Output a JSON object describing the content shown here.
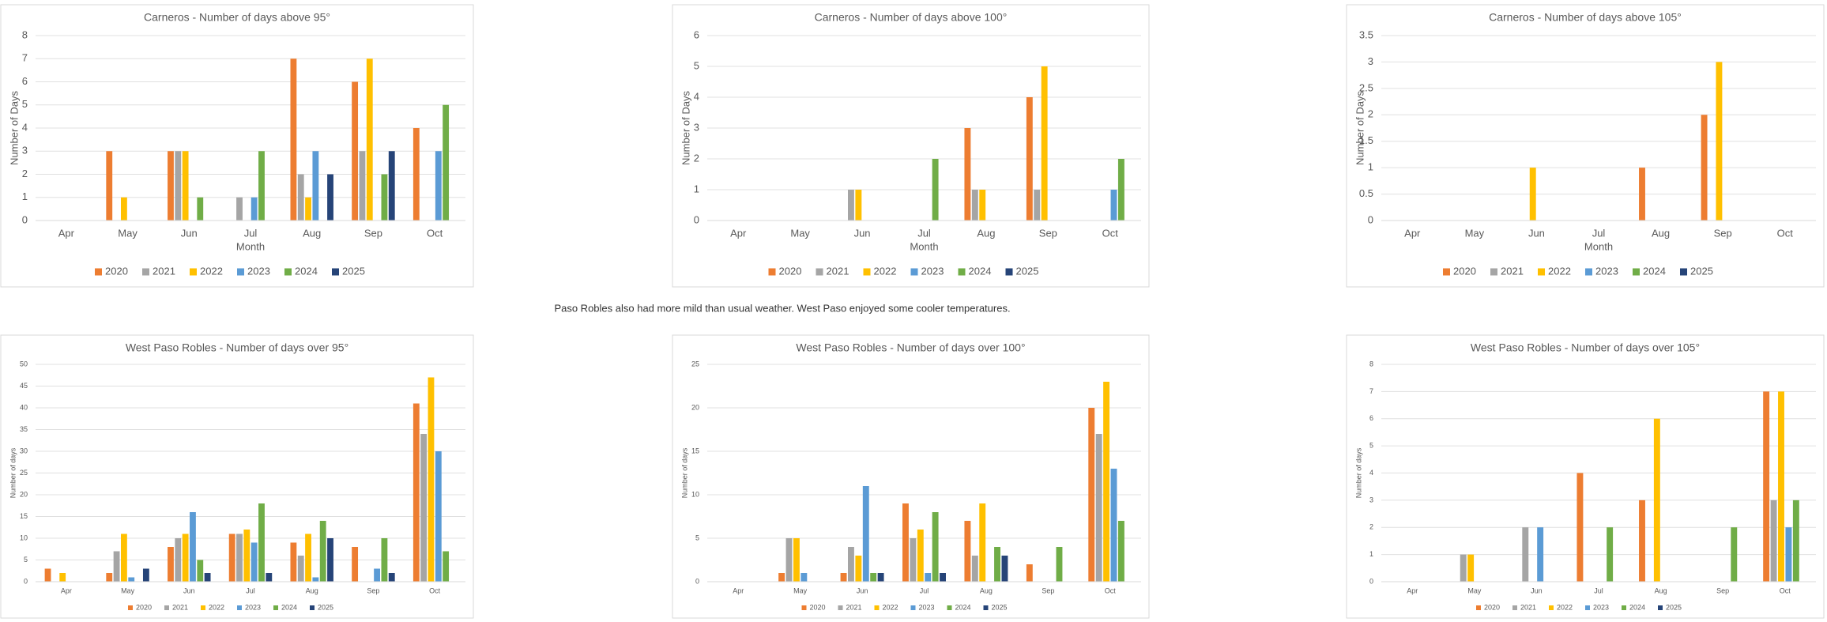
{
  "chart_data": [
    {
      "type": "bar",
      "title": "Carneros - Number of days above 95°",
      "x_label": "Month",
      "y_label": "Number of Days",
      "categories": [
        "Apr",
        "May",
        "Jun",
        "Jul",
        "Aug",
        "Sep",
        "Oct"
      ],
      "series": [
        {
          "name": "2020",
          "color": "#ed7d31",
          "values": [
            0,
            3,
            3,
            0,
            7,
            6,
            4
          ]
        },
        {
          "name": "2021",
          "color": "#a5a5a5",
          "values": [
            0,
            0,
            3,
            1,
            2,
            3,
            0
          ]
        },
        {
          "name": "2022",
          "color": "#ffc000",
          "values": [
            0,
            1,
            3,
            0,
            1,
            7,
            0
          ]
        },
        {
          "name": "2023",
          "color": "#5b9bd5",
          "values": [
            0,
            0,
            0,
            1,
            3,
            0,
            3
          ]
        },
        {
          "name": "2024",
          "color": "#70ad47",
          "values": [
            0,
            0,
            1,
            3,
            0,
            2,
            5
          ]
        },
        {
          "name": "2025",
          "color": "#264478",
          "values": [
            0,
            0,
            0,
            0,
            2,
            3,
            0
          ]
        }
      ],
      "ylim": [
        0,
        8
      ],
      "yticks": [
        0,
        1,
        2,
        3,
        4,
        5,
        6,
        7,
        8
      ],
      "grid": true,
      "legend": "bottom"
    },
    {
      "type": "bar",
      "title": "Carneros - Number of days above 100°",
      "x_label": "Month",
      "y_label": "Number of Days",
      "categories": [
        "Apr",
        "May",
        "Jun",
        "Jul",
        "Aug",
        "Sep",
        "Oct"
      ],
      "series": [
        {
          "name": "2020",
          "color": "#ed7d31",
          "values": [
            0,
            0,
            0,
            0,
            3,
            4,
            0
          ]
        },
        {
          "name": "2021",
          "color": "#a5a5a5",
          "values": [
            0,
            0,
            1,
            0,
            1,
            1,
            0
          ]
        },
        {
          "name": "2022",
          "color": "#ffc000",
          "values": [
            0,
            0,
            1,
            0,
            1,
            5,
            0
          ]
        },
        {
          "name": "2023",
          "color": "#5b9bd5",
          "values": [
            0,
            0,
            0,
            0,
            0,
            0,
            1
          ]
        },
        {
          "name": "2024",
          "color": "#70ad47",
          "values": [
            0,
            0,
            0,
            2,
            0,
            0,
            2
          ]
        },
        {
          "name": "2025",
          "color": "#264478",
          "values": [
            0,
            0,
            0,
            0,
            0,
            0,
            0
          ]
        }
      ],
      "ylim": [
        0,
        6
      ],
      "yticks": [
        0,
        1,
        2,
        3,
        4,
        5,
        6
      ],
      "grid": true,
      "legend": "bottom"
    },
    {
      "type": "bar",
      "title": "Carneros - Number of days above 105°",
      "x_label": "Month",
      "y_label": "Number of Days",
      "categories": [
        "Apr",
        "May",
        "Jun",
        "Jul",
        "Aug",
        "Sep",
        "Oct"
      ],
      "series": [
        {
          "name": "2020",
          "color": "#ed7d31",
          "values": [
            0,
            0,
            0,
            0,
            1,
            2,
            0
          ]
        },
        {
          "name": "2021",
          "color": "#a5a5a5",
          "values": [
            0,
            0,
            0,
            0,
            0,
            0,
            0
          ]
        },
        {
          "name": "2022",
          "color": "#ffc000",
          "values": [
            0,
            0,
            1,
            0,
            0,
            3,
            0
          ]
        },
        {
          "name": "2023",
          "color": "#5b9bd5",
          "values": [
            0,
            0,
            0,
            0,
            0,
            0,
            0
          ]
        },
        {
          "name": "2024",
          "color": "#70ad47",
          "values": [
            0,
            0,
            0,
            0,
            0,
            0,
            0
          ]
        },
        {
          "name": "2025",
          "color": "#264478",
          "values": [
            0,
            0,
            0,
            0,
            0,
            0,
            0
          ]
        }
      ],
      "ylim": [
        0,
        3.5
      ],
      "yticks": [
        0,
        0.5,
        1,
        1.5,
        2,
        2.5,
        3,
        3.5
      ],
      "grid": true,
      "legend": "bottom"
    },
    {
      "type": "bar",
      "title": "West Paso Robles - Number of days over 95°",
      "y_label": "Number of days",
      "categories": [
        "Apr",
        "May",
        "Jun",
        "Jul",
        "Aug",
        "Sep",
        "Oct"
      ],
      "series": [
        {
          "name": "2020",
          "color": "#ed7d31",
          "values": [
            3,
            2,
            8,
            11,
            9,
            8,
            41
          ]
        },
        {
          "name": "2021",
          "color": "#a5a5a5",
          "values": [
            0,
            7,
            10,
            11,
            6,
            0,
            34
          ]
        },
        {
          "name": "2022",
          "color": "#ffc000",
          "values": [
            2,
            11,
            11,
            12,
            11,
            0,
            47
          ]
        },
        {
          "name": "2023",
          "color": "#5b9bd5",
          "values": [
            0,
            1,
            16,
            9,
            1,
            3,
            30
          ]
        },
        {
          "name": "2024",
          "color": "#70ad47",
          "values": [
            0,
            0,
            5,
            18,
            14,
            10,
            7
          ]
        },
        {
          "name": "2025",
          "color": "#264478",
          "values": [
            0,
            3,
            2,
            2,
            10,
            2,
            0
          ]
        }
      ],
      "ylim": [
        0,
        50
      ],
      "yticks": [
        0,
        5,
        10,
        15,
        20,
        25,
        30,
        35,
        40,
        45,
        50
      ],
      "grid": true,
      "legend": "bottom"
    },
    {
      "type": "bar",
      "title": "West Paso Robles - Number of days over 100°",
      "y_label": "Number of days",
      "categories": [
        "Apr",
        "May",
        "Jun",
        "Jul",
        "Aug",
        "Sep",
        "Oct"
      ],
      "series": [
        {
          "name": "2020",
          "color": "#ed7d31",
          "values": [
            0,
            1,
            1,
            9,
            7,
            2,
            20
          ]
        },
        {
          "name": "2021",
          "color": "#a5a5a5",
          "values": [
            0,
            5,
            4,
            5,
            3,
            0,
            17
          ]
        },
        {
          "name": "2022",
          "color": "#ffc000",
          "values": [
            0,
            5,
            3,
            6,
            9,
            0,
            23
          ]
        },
        {
          "name": "2023",
          "color": "#5b9bd5",
          "values": [
            0,
            1,
            11,
            1,
            0,
            0,
            13
          ]
        },
        {
          "name": "2024",
          "color": "#70ad47",
          "values": [
            0,
            0,
            1,
            8,
            4,
            4,
            7
          ]
        },
        {
          "name": "2025",
          "color": "#264478",
          "values": [
            0,
            0,
            1,
            1,
            3,
            0,
            0
          ]
        }
      ],
      "ylim": [
        0,
        25
      ],
      "yticks": [
        0,
        5,
        10,
        15,
        20,
        25
      ],
      "grid": true,
      "legend": "bottom"
    },
    {
      "type": "bar",
      "title": "West Paso Robles - Number of days over 105°",
      "y_label": "Number of days",
      "categories": [
        "Apr",
        "May",
        "Jun",
        "Jul",
        "Aug",
        "Sep",
        "Oct"
      ],
      "series": [
        {
          "name": "2020",
          "color": "#ed7d31",
          "values": [
            0,
            0,
            0,
            4,
            3,
            0,
            7
          ]
        },
        {
          "name": "2021",
          "color": "#a5a5a5",
          "values": [
            0,
            1,
            2,
            0,
            0,
            0,
            3
          ]
        },
        {
          "name": "2022",
          "color": "#ffc000",
          "values": [
            0,
            1,
            0,
            0,
            6,
            0,
            7
          ]
        },
        {
          "name": "2023",
          "color": "#5b9bd5",
          "values": [
            0,
            0,
            2,
            0,
            0,
            0,
            2
          ]
        },
        {
          "name": "2024",
          "color": "#70ad47",
          "values": [
            0,
            0,
            0,
            2,
            0,
            2,
            3
          ]
        },
        {
          "name": "2025",
          "color": "#264478",
          "values": [
            0,
            0,
            0,
            0,
            0,
            0,
            0
          ]
        }
      ],
      "ylim": [
        0,
        8
      ],
      "yticks": [
        0,
        1,
        2,
        3,
        4,
        5,
        6,
        7,
        8
      ],
      "grid": true,
      "legend": "bottom"
    }
  ],
  "note": "Paso Robles also had more mild than usual weather. West Paso enjoyed some cooler temperatures."
}
